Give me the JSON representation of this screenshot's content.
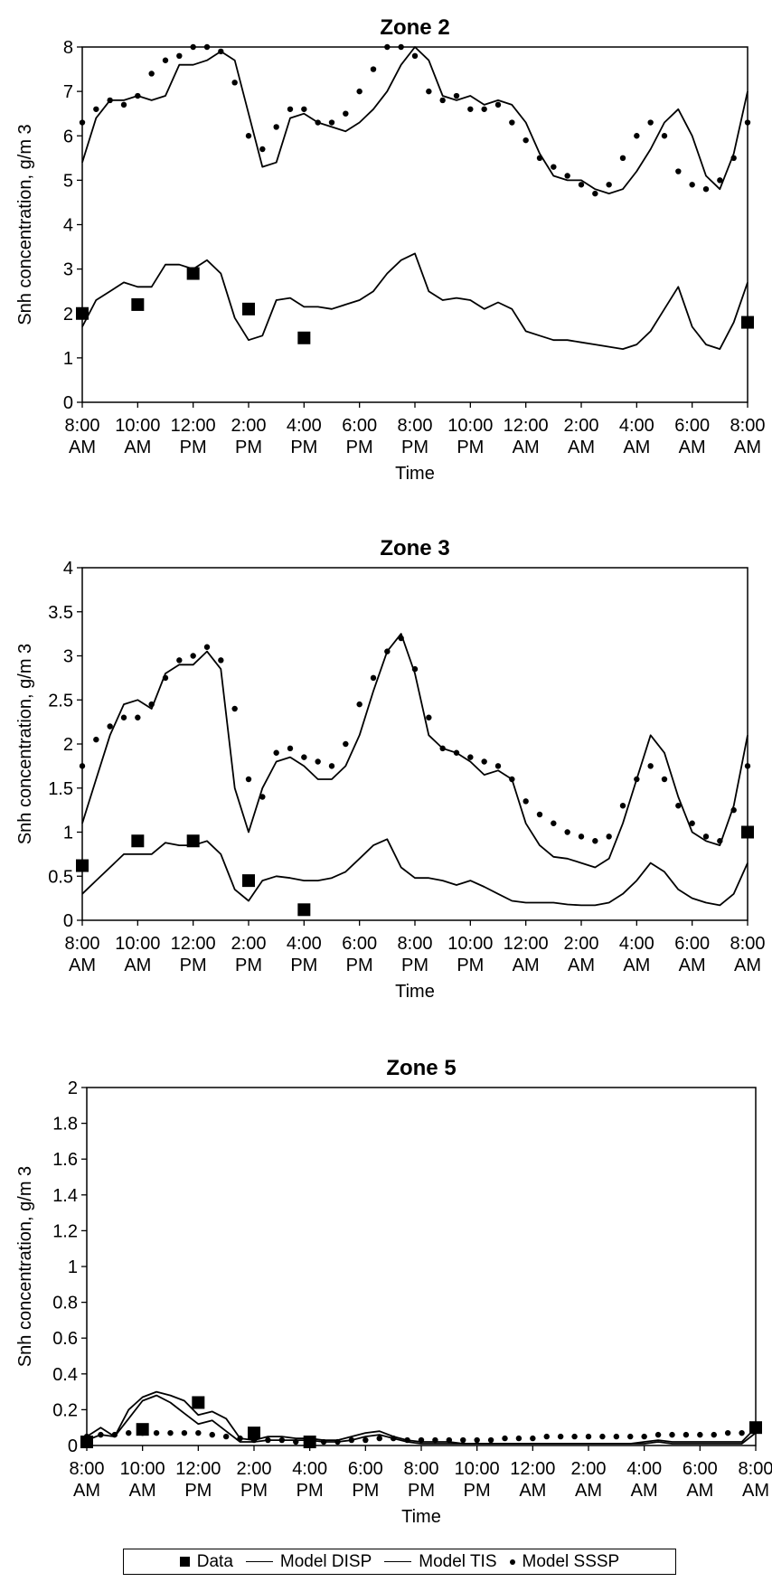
{
  "time_ticks": [
    "8:00 AM",
    "10:00 AM",
    "12:00 PM",
    "2:00 PM",
    "4:00 PM",
    "6:00 PM",
    "8:00 PM",
    "10:00 PM",
    "12:00 AM",
    "2:00 AM",
    "4:00 AM",
    "6:00 AM",
    "8:00 AM"
  ],
  "legend": [
    {
      "label": "Data",
      "marker": "square"
    },
    {
      "label": "Model DISP",
      "marker": "line"
    },
    {
      "label": "Model TIS",
      "marker": "line"
    },
    {
      "label": "Model SSSP",
      "marker": "dot"
    }
  ],
  "chart_data": [
    {
      "type": "line",
      "title": "Zone 2",
      "xlabel": "Time",
      "ylabel": "Snh concentration, g/m 3",
      "x_unit": "hours from start (0 = 8:00 AM, 24 = 8:00 AM next day)",
      "xlim": [
        0,
        24
      ],
      "ylim": [
        0,
        8
      ],
      "yticks": [
        "0",
        "1",
        "2",
        "3",
        "4",
        "5",
        "6",
        "7",
        "8"
      ],
      "series": [
        {
          "name": "Data",
          "marker": "square",
          "x": [
            0,
            2,
            4,
            6,
            8,
            24
          ],
          "y": [
            2.0,
            2.2,
            2.9,
            2.1,
            1.45,
            1.8
          ]
        },
        {
          "name": "Model DISP",
          "marker": "line",
          "x": [
            0,
            0.5,
            1,
            1.5,
            2,
            2.5,
            3,
            3.5,
            4,
            4.5,
            5,
            5.5,
            6,
            6.5,
            7,
            7.5,
            8,
            8.5,
            9,
            9.5,
            10,
            10.5,
            11,
            11.5,
            12,
            12.5,
            13,
            13.5,
            14,
            14.5,
            15,
            15.5,
            16,
            16.5,
            17,
            17.5,
            18,
            18.5,
            19,
            19.5,
            20,
            20.5,
            21,
            21.5,
            22,
            22.5,
            23,
            23.5,
            24
          ],
          "y": [
            5.4,
            6.4,
            6.8,
            6.8,
            6.9,
            6.8,
            6.9,
            7.6,
            7.6,
            7.7,
            7.9,
            7.7,
            6.5,
            5.3,
            5.4,
            6.4,
            6.5,
            6.3,
            6.2,
            6.1,
            6.3,
            6.6,
            7.0,
            7.6,
            8.0,
            7.7,
            6.9,
            6.8,
            6.9,
            6.7,
            6.8,
            6.7,
            6.3,
            5.6,
            5.1,
            5.0,
            5.0,
            4.8,
            4.7,
            4.8,
            5.2,
            5.7,
            6.3,
            6.6,
            6.0,
            5.1,
            4.8,
            5.6,
            7.0
          ]
        },
        {
          "name": "Model TIS",
          "marker": "line",
          "x": [
            0,
            0.5,
            1,
            1.5,
            2,
            2.5,
            3,
            3.5,
            4,
            4.5,
            5,
            5.5,
            6,
            6.5,
            7,
            7.5,
            8,
            8.5,
            9,
            9.5,
            10,
            10.5,
            11,
            11.5,
            12,
            12.5,
            13,
            13.5,
            14,
            14.5,
            15,
            15.5,
            16,
            16.5,
            17,
            17.5,
            18,
            18.5,
            19,
            19.5,
            20,
            20.5,
            21,
            21.5,
            22,
            22.5,
            23,
            23.5,
            24
          ],
          "y": [
            1.7,
            2.3,
            2.5,
            2.7,
            2.6,
            2.6,
            3.1,
            3.1,
            3.0,
            3.2,
            2.9,
            1.9,
            1.4,
            1.5,
            2.3,
            2.35,
            2.15,
            2.15,
            2.1,
            2.2,
            2.3,
            2.5,
            2.9,
            3.2,
            3.35,
            2.5,
            2.3,
            2.35,
            2.3,
            2.1,
            2.25,
            2.1,
            1.6,
            1.5,
            1.4,
            1.4,
            1.35,
            1.3,
            1.25,
            1.2,
            1.3,
            1.6,
            2.1,
            2.6,
            1.7,
            1.3,
            1.2,
            1.8,
            2.7
          ]
        },
        {
          "name": "Model SSSP",
          "marker": "dot",
          "x": [
            0,
            0.5,
            1,
            1.5,
            2,
            2.5,
            3,
            3.5,
            4,
            4.5,
            5,
            5.5,
            6,
            6.5,
            7,
            7.5,
            8,
            8.5,
            9,
            9.5,
            10,
            10.5,
            11,
            11.5,
            12,
            12.5,
            13,
            13.5,
            14,
            14.5,
            15,
            15.5,
            16,
            16.5,
            17,
            17.5,
            18,
            18.5,
            19,
            19.5,
            20,
            20.5,
            21,
            21.5,
            22,
            22.5,
            23,
            23.5,
            24
          ],
          "y": [
            6.3,
            6.6,
            6.8,
            6.7,
            6.9,
            7.4,
            7.7,
            7.8,
            8.0,
            8.0,
            7.9,
            7.2,
            6.0,
            5.7,
            6.2,
            6.6,
            6.6,
            6.3,
            6.3,
            6.5,
            7.0,
            7.5,
            8.0,
            8.0,
            7.8,
            7.0,
            6.8,
            6.9,
            6.6,
            6.6,
            6.7,
            6.3,
            5.9,
            5.5,
            5.3,
            5.1,
            4.9,
            4.7,
            4.9,
            5.5,
            6.0,
            6.3,
            6.0,
            5.2,
            4.9,
            4.8,
            5.0,
            5.5,
            6.3
          ]
        }
      ]
    },
    {
      "type": "line",
      "title": "Zone 3",
      "xlabel": "Time",
      "ylabel": "Snh concentration, g/m 3",
      "xlim": [
        0,
        24
      ],
      "ylim": [
        0,
        4
      ],
      "yticks": [
        "0",
        "0.5",
        "1",
        "1.5",
        "2",
        "2.5",
        "3",
        "3.5",
        "4"
      ],
      "series": [
        {
          "name": "Data",
          "marker": "square",
          "x": [
            0,
            2,
            4,
            6,
            8,
            24
          ],
          "y": [
            0.62,
            0.9,
            0.9,
            0.45,
            0.12,
            1.0
          ]
        },
        {
          "name": "Model DISP",
          "marker": "line",
          "x": [
            0,
            0.5,
            1,
            1.5,
            2,
            2.5,
            3,
            3.5,
            4,
            4.5,
            5,
            5.5,
            6,
            6.5,
            7,
            7.5,
            8,
            8.5,
            9,
            9.5,
            10,
            10.5,
            11,
            11.5,
            12,
            12.5,
            13,
            13.5,
            14,
            14.5,
            15,
            15.5,
            16,
            16.5,
            17,
            17.5,
            18,
            18.5,
            19,
            19.5,
            20,
            20.5,
            21,
            21.5,
            22,
            22.5,
            23,
            23.5,
            24
          ],
          "y": [
            1.1,
            1.6,
            2.1,
            2.45,
            2.5,
            2.4,
            2.8,
            2.9,
            2.9,
            3.05,
            2.85,
            1.5,
            1.0,
            1.5,
            1.8,
            1.85,
            1.75,
            1.6,
            1.6,
            1.75,
            2.1,
            2.6,
            3.05,
            3.25,
            2.8,
            2.1,
            1.95,
            1.9,
            1.8,
            1.65,
            1.7,
            1.6,
            1.1,
            0.85,
            0.72,
            0.7,
            0.65,
            0.6,
            0.7,
            1.1,
            1.6,
            2.1,
            1.9,
            1.4,
            1.0,
            0.9,
            0.85,
            1.3,
            2.1
          ]
        },
        {
          "name": "Model TIS",
          "marker": "line",
          "x": [
            0,
            0.5,
            1,
            1.5,
            2,
            2.5,
            3,
            3.5,
            4,
            4.5,
            5,
            5.5,
            6,
            6.5,
            7,
            7.5,
            8,
            8.5,
            9,
            9.5,
            10,
            10.5,
            11,
            11.5,
            12,
            12.5,
            13,
            13.5,
            14,
            14.5,
            15,
            15.5,
            16,
            16.5,
            17,
            17.5,
            18,
            18.5,
            19,
            19.5,
            20,
            20.5,
            21,
            21.5,
            22,
            22.5,
            23,
            23.5,
            24
          ],
          "y": [
            0.3,
            0.45,
            0.6,
            0.75,
            0.75,
            0.75,
            0.88,
            0.85,
            0.85,
            0.9,
            0.75,
            0.35,
            0.22,
            0.45,
            0.5,
            0.48,
            0.45,
            0.45,
            0.48,
            0.55,
            0.7,
            0.85,
            0.92,
            0.6,
            0.48,
            0.48,
            0.45,
            0.4,
            0.45,
            0.38,
            0.3,
            0.22,
            0.2,
            0.2,
            0.2,
            0.18,
            0.17,
            0.17,
            0.2,
            0.3,
            0.45,
            0.65,
            0.55,
            0.35,
            0.25,
            0.2,
            0.17,
            0.3,
            0.65
          ]
        },
        {
          "name": "Model SSSP",
          "marker": "dot",
          "x": [
            0,
            0.5,
            1,
            1.5,
            2,
            2.5,
            3,
            3.5,
            4,
            4.5,
            5,
            5.5,
            6,
            6.5,
            7,
            7.5,
            8,
            8.5,
            9,
            9.5,
            10,
            10.5,
            11,
            11.5,
            12,
            12.5,
            13,
            13.5,
            14,
            14.5,
            15,
            15.5,
            16,
            16.5,
            17,
            17.5,
            18,
            18.5,
            19,
            19.5,
            20,
            20.5,
            21,
            21.5,
            22,
            22.5,
            23,
            23.5,
            24
          ],
          "y": [
            1.75,
            2.05,
            2.2,
            2.3,
            2.3,
            2.45,
            2.75,
            2.95,
            3.0,
            3.1,
            2.95,
            2.4,
            1.6,
            1.4,
            1.9,
            1.95,
            1.85,
            1.8,
            1.75,
            2.0,
            2.45,
            2.75,
            3.05,
            3.2,
            2.85,
            2.3,
            1.95,
            1.9,
            1.85,
            1.8,
            1.75,
            1.6,
            1.35,
            1.2,
            1.1,
            1.0,
            0.95,
            0.9,
            0.95,
            1.3,
            1.6,
            1.75,
            1.6,
            1.3,
            1.1,
            0.95,
            0.9,
            1.25,
            1.75
          ]
        }
      ]
    },
    {
      "type": "line",
      "title": "Zone 5",
      "xlabel": "Time",
      "ylabel": "Snh concentration, g/m 3",
      "xlim": [
        0,
        24
      ],
      "ylim": [
        0,
        2
      ],
      "yticks": [
        "0",
        "0.2",
        "0.4",
        "0.6",
        "0.8",
        "1",
        "1.2",
        "1.4",
        "1.6",
        "1.8",
        "2"
      ],
      "series": [
        {
          "name": "Data",
          "marker": "square",
          "x": [
            0,
            2,
            4,
            6,
            8,
            24
          ],
          "y": [
            0.02,
            0.09,
            0.24,
            0.07,
            0.02,
            0.1
          ]
        },
        {
          "name": "Model DISP",
          "marker": "line",
          "x": [
            0,
            0.5,
            1,
            1.5,
            2,
            2.5,
            3,
            3.5,
            4,
            4.5,
            5,
            5.5,
            6,
            6.5,
            7,
            7.5,
            8,
            8.5,
            9,
            9.5,
            10,
            10.5,
            11,
            11.5,
            12,
            12.5,
            13,
            13.5,
            14,
            14.5,
            15,
            15.5,
            16,
            16.5,
            17,
            17.5,
            18,
            18.5,
            19,
            19.5,
            20,
            20.5,
            21,
            21.5,
            22,
            22.5,
            23,
            23.5,
            24
          ],
          "y": [
            0.05,
            0.1,
            0.05,
            0.2,
            0.27,
            0.3,
            0.28,
            0.25,
            0.17,
            0.19,
            0.15,
            0.04,
            0.03,
            0.05,
            0.05,
            0.04,
            0.04,
            0.03,
            0.03,
            0.05,
            0.07,
            0.08,
            0.05,
            0.03,
            0.02,
            0.02,
            0.02,
            0.01,
            0.01,
            0.01,
            0.01,
            0.01,
            0.01,
            0.01,
            0.01,
            0.01,
            0.01,
            0.01,
            0.01,
            0.01,
            0.02,
            0.03,
            0.02,
            0.02,
            0.02,
            0.02,
            0.02,
            0.02,
            0.1
          ]
        },
        {
          "name": "Model TIS",
          "marker": "line",
          "x": [
            0,
            0.5,
            1,
            1.5,
            2,
            2.5,
            3,
            3.5,
            4,
            4.5,
            5,
            5.5,
            6,
            6.5,
            7,
            7.5,
            8,
            8.5,
            9,
            9.5,
            10,
            10.5,
            11,
            11.5,
            12,
            12.5,
            13,
            13.5,
            14,
            14.5,
            15,
            15.5,
            16,
            16.5,
            17,
            17.5,
            18,
            18.5,
            19,
            19.5,
            20,
            20.5,
            21,
            21.5,
            22,
            22.5,
            23,
            23.5,
            24
          ],
          "y": [
            0.03,
            0.06,
            0.05,
            0.15,
            0.25,
            0.28,
            0.24,
            0.18,
            0.12,
            0.14,
            0.08,
            0.02,
            0.02,
            0.03,
            0.03,
            0.03,
            0.03,
            0.02,
            0.02,
            0.03,
            0.05,
            0.06,
            0.04,
            0.02,
            0.01,
            0.01,
            0.01,
            0.01,
            0.01,
            0.01,
            0.01,
            0.01,
            0.01,
            0.01,
            0.01,
            0.01,
            0.01,
            0.01,
            0.01,
            0.01,
            0.01,
            0.02,
            0.01,
            0.01,
            0.01,
            0.01,
            0.01,
            0.01,
            0.07
          ]
        },
        {
          "name": "Model SSSP",
          "marker": "dot",
          "x": [
            0,
            0.5,
            1,
            1.5,
            2,
            2.5,
            3,
            3.5,
            4,
            4.5,
            5,
            5.5,
            6,
            6.5,
            7,
            7.5,
            8,
            8.5,
            9,
            9.5,
            10,
            10.5,
            11,
            11.5,
            12,
            12.5,
            13,
            13.5,
            14,
            14.5,
            15,
            15.5,
            16,
            16.5,
            17,
            17.5,
            18,
            18.5,
            19,
            19.5,
            20,
            20.5,
            21,
            21.5,
            22,
            22.5,
            23,
            23.5,
            24
          ],
          "y": [
            0.05,
            0.06,
            0.06,
            0.07,
            0.07,
            0.07,
            0.07,
            0.07,
            0.07,
            0.06,
            0.05,
            0.04,
            0.03,
            0.03,
            0.03,
            0.02,
            0.02,
            0.02,
            0.02,
            0.03,
            0.03,
            0.04,
            0.04,
            0.03,
            0.03,
            0.03,
            0.03,
            0.03,
            0.03,
            0.03,
            0.04,
            0.04,
            0.04,
            0.05,
            0.05,
            0.05,
            0.05,
            0.05,
            0.05,
            0.05,
            0.05,
            0.06,
            0.06,
            0.06,
            0.06,
            0.06,
            0.07,
            0.07,
            0.08
          ]
        }
      ]
    }
  ]
}
